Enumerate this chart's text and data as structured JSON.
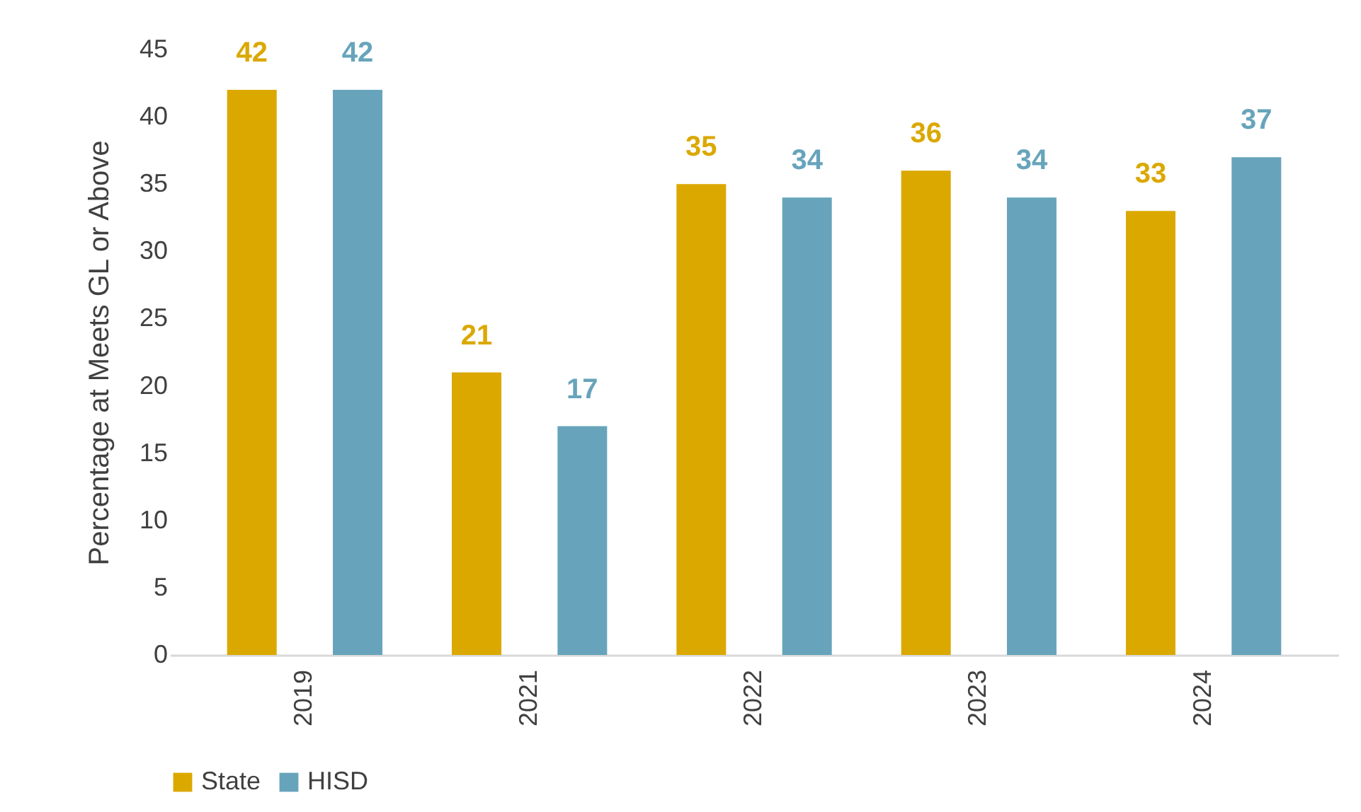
{
  "chart_data": {
    "type": "bar",
    "ylabel": "Percentage at Meets GL or Above",
    "categories": [
      "2019",
      "2021",
      "2022",
      "2023",
      "2024"
    ],
    "series": [
      {
        "name": "State",
        "color": "#dba800",
        "values": [
          42,
          21,
          35,
          36,
          33
        ]
      },
      {
        "name": "HISD",
        "color": "#67a4bb",
        "values": [
          42,
          17,
          34,
          34,
          37
        ]
      }
    ],
    "ylim": [
      0,
      45
    ],
    "yticks": [
      0,
      5,
      10,
      15,
      20,
      25,
      30,
      35,
      40,
      45
    ],
    "data_labels": true,
    "legend": "bottom",
    "grid": false
  }
}
